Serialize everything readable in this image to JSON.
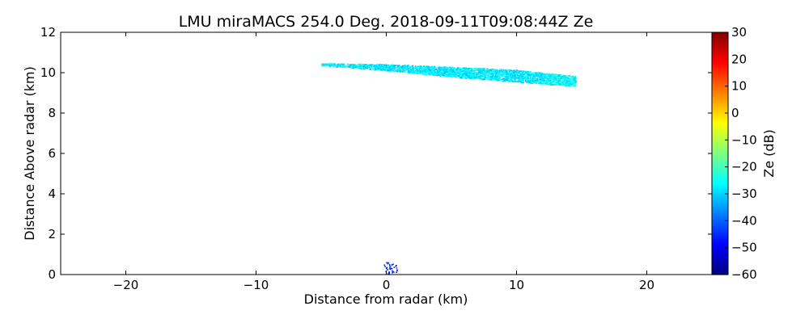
{
  "chart_data": {
    "type": "heatmap",
    "title": "LMU miraMACS 254.0 Deg. 2018-09-11T09:08:44Z  Ze",
    "xlabel": "Distance from radar (km)",
    "ylabel": "Distance Above radar  (km)",
    "xlim": [
      -25,
      25
    ],
    "ylim": [
      0,
      12
    ],
    "x_ticks": [
      -20,
      -10,
      0,
      10,
      20
    ],
    "x_tick_labels": [
      "−20",
      "−10",
      "0",
      "10",
      "20"
    ],
    "y_ticks": [
      0,
      2,
      4,
      6,
      8,
      10,
      12
    ],
    "y_tick_labels": [
      "0",
      "2",
      "4",
      "6",
      "8",
      "10",
      "12"
    ],
    "colorbar": {
      "label": "Ze (dB)",
      "range": [
        -60,
        30
      ],
      "ticks": [
        30,
        20,
        10,
        0,
        -10,
        -20,
        -30,
        -40,
        -50,
        -60
      ],
      "tick_labels": [
        "30",
        "20",
        "10",
        "0",
        "−10",
        "−20",
        "−30",
        "−40",
        "−50",
        "−60"
      ],
      "colormap": "jet"
    },
    "echo_layer": {
      "description": "cirrus echo layer",
      "x_range": [
        -5,
        14.5
      ],
      "centerline": [
        [
          -5,
          10.42
        ],
        [
          0,
          10.28
        ],
        [
          5,
          10.05
        ],
        [
          10,
          9.85
        ],
        [
          14.5,
          9.6
        ]
      ],
      "thickness_km": [
        0.12,
        0.3,
        0.5,
        0.6,
        0.5
      ],
      "ze_typical_db": -28
    },
    "ground_clutter": {
      "x_range": [
        -0.2,
        0.8
      ],
      "height_max": 0.65,
      "ze_typical_db": -45
    }
  },
  "colors": {
    "axis": "#000000",
    "background": "#ffffff"
  }
}
